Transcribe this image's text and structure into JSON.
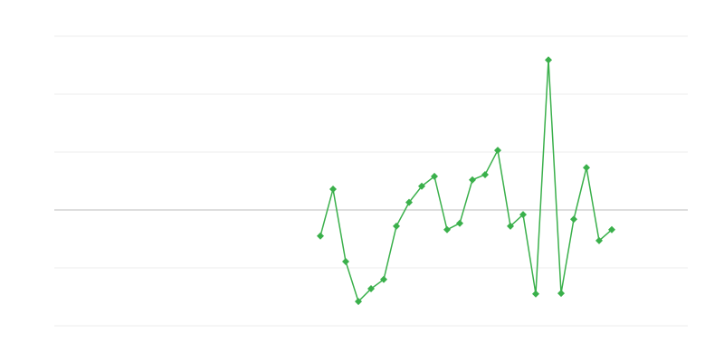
{
  "chart_data": {
    "type": "line",
    "categories": [
      null,
      null,
      null,
      null,
      null,
      null,
      null,
      null,
      null,
      null,
      null,
      null,
      null,
      null,
      null,
      null,
      null,
      null,
      null,
      null,
      null,
      null,
      null,
      null,
      null,
      null,
      null,
      null,
      null,
      null,
      null,
      null,
      null,
      null,
      null,
      null,
      null,
      null,
      null,
      null,
      null,
      null,
      null,
      null,
      null,
      null,
      null,
      null,
      null,
      null
    ],
    "values": [
      null,
      null,
      null,
      null,
      null,
      null,
      null,
      null,
      null,
      null,
      null,
      null,
      null,
      null,
      null,
      null,
      null,
      null,
      null,
      null,
      null,
      -0.45,
      0.36,
      -0.89,
      -1.58,
      -1.36,
      -1.2,
      -0.28,
      0.13,
      0.41,
      0.58,
      -0.34,
      -0.23,
      0.52,
      0.61,
      1.03,
      -0.28,
      -0.08,
      -1.45,
      2.59,
      -1.44,
      -0.16,
      0.73,
      -0.53,
      -0.34,
      null,
      null,
      null,
      null,
      null
    ],
    "color": "#3ab04b",
    "ylim": [
      -2,
      3
    ],
    "yticks": [
      -2,
      -1,
      0,
      1,
      2,
      3
    ],
    "grid": true
  }
}
